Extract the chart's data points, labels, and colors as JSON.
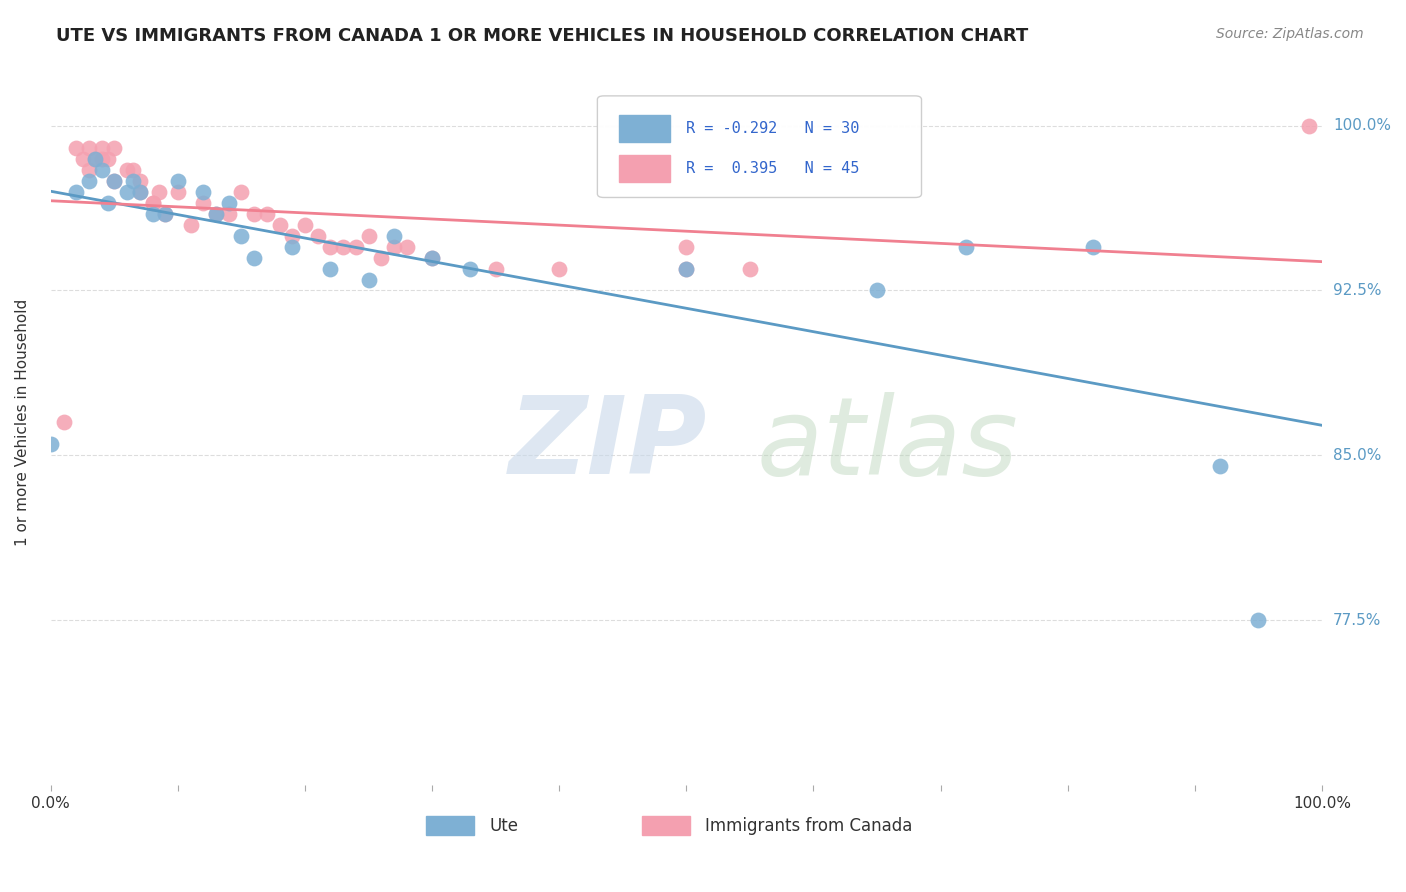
{
  "title": "UTE VS IMMIGRANTS FROM CANADA 1 OR MORE VEHICLES IN HOUSEHOLD CORRELATION CHART",
  "source": "Source: ZipAtlas.com",
  "ylabel": "1 or more Vehicles in Household",
  "ytick_labels": [
    "77.5%",
    "85.0%",
    "92.5%",
    "100.0%"
  ],
  "ytick_values": [
    0.775,
    0.85,
    0.925,
    1.0
  ],
  "xlim": [
    0.0,
    1.0
  ],
  "ylim": [
    0.7,
    1.03
  ],
  "color_ute": "#7EB0D4",
  "color_imm": "#F4A0B0",
  "color_ute_line": "#5B9AC4",
  "color_imm_line": "#F08090",
  "background_color": "#ffffff",
  "grid_color": "#dddddd",
  "ute_x": [
    0.0,
    0.02,
    0.03,
    0.035,
    0.04,
    0.045,
    0.05,
    0.06,
    0.065,
    0.07,
    0.08,
    0.09,
    0.1,
    0.12,
    0.13,
    0.14,
    0.15,
    0.16,
    0.19,
    0.22,
    0.25,
    0.27,
    0.3,
    0.33,
    0.5,
    0.65,
    0.72,
    0.82,
    0.92,
    0.95
  ],
  "ute_y": [
    0.855,
    0.97,
    0.975,
    0.985,
    0.98,
    0.965,
    0.975,
    0.97,
    0.975,
    0.97,
    0.96,
    0.96,
    0.975,
    0.97,
    0.96,
    0.965,
    0.95,
    0.94,
    0.945,
    0.935,
    0.93,
    0.95,
    0.94,
    0.935,
    0.935,
    0.925,
    0.945,
    0.945,
    0.845,
    0.775
  ],
  "imm_x": [
    0.01,
    0.02,
    0.025,
    0.03,
    0.03,
    0.035,
    0.04,
    0.04,
    0.045,
    0.05,
    0.05,
    0.06,
    0.065,
    0.07,
    0.07,
    0.08,
    0.08,
    0.085,
    0.09,
    0.1,
    0.11,
    0.12,
    0.13,
    0.14,
    0.15,
    0.16,
    0.17,
    0.18,
    0.19,
    0.2,
    0.21,
    0.22,
    0.23,
    0.24,
    0.25,
    0.26,
    0.27,
    0.28,
    0.3,
    0.35,
    0.4,
    0.5,
    0.55,
    0.99,
    0.5
  ],
  "imm_y": [
    0.865,
    0.99,
    0.985,
    0.99,
    0.98,
    0.985,
    0.99,
    0.985,
    0.985,
    0.99,
    0.975,
    0.98,
    0.98,
    0.975,
    0.97,
    0.965,
    0.965,
    0.97,
    0.96,
    0.97,
    0.955,
    0.965,
    0.96,
    0.96,
    0.97,
    0.96,
    0.96,
    0.955,
    0.95,
    0.955,
    0.95,
    0.945,
    0.945,
    0.945,
    0.95,
    0.94,
    0.945,
    0.945,
    0.94,
    0.935,
    0.935,
    0.935,
    0.935,
    1.0,
    0.945
  ]
}
